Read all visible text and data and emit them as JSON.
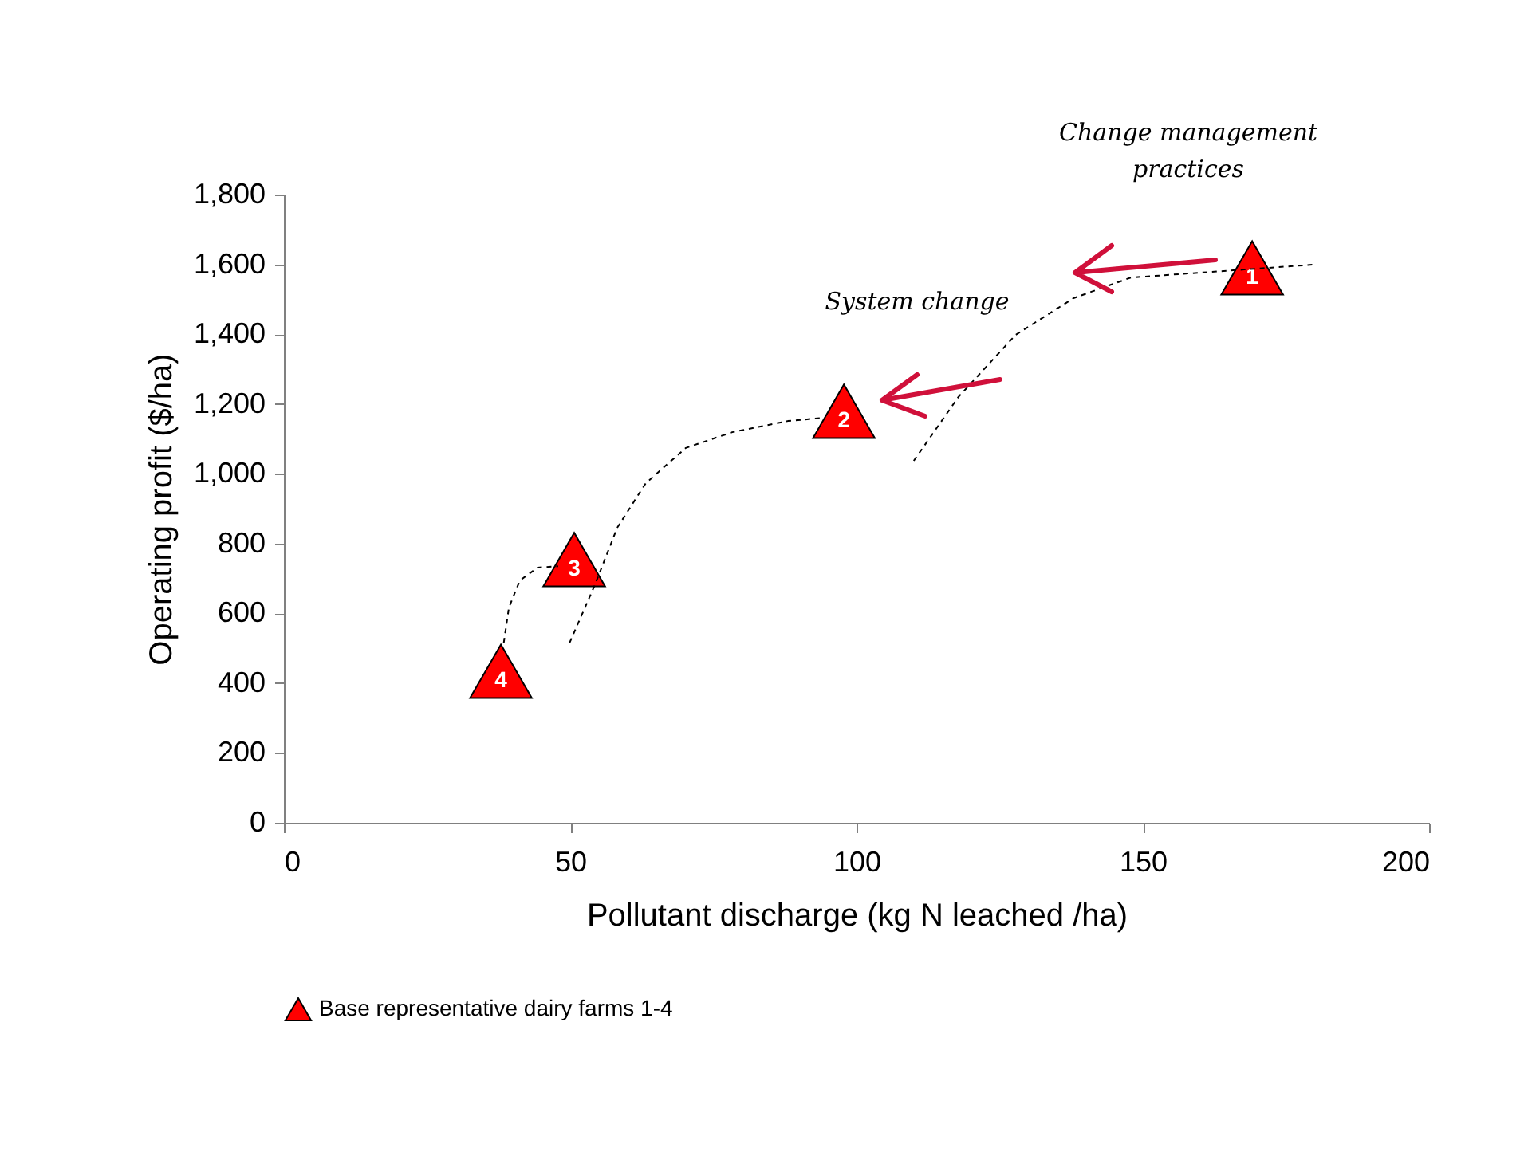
{
  "chart_data": {
    "type": "scatter",
    "xlabel": "Pollutant discharge (kg N leached /ha)",
    "ylabel": "Operating profit  ($/ha)",
    "xlim": [
      0,
      200
    ],
    "xticks": [
      0,
      50,
      100,
      150,
      200
    ],
    "ylim": [
      0,
      1800
    ],
    "yticks": [
      0,
      200,
      400,
      600,
      800,
      {
        "value": 1000,
        "label": "1,000"
      },
      {
        "value": 1200,
        "label": "1,200"
      },
      {
        "value": 1400,
        "label": "1,400"
      },
      {
        "value": 1600,
        "label": "1,600"
      },
      {
        "value": 1800,
        "label": "1,800"
      }
    ],
    "grid": false,
    "legend": "bottom",
    "annotations": [
      "Change management practices",
      "System change",
      {
        "text": "1",
        "x": 169.1,
        "y": 1590
      },
      {
        "text": "2",
        "x": 97.8,
        "y": 1179
      },
      {
        "text": "3",
        "x": 50.7,
        "y": 754
      },
      {
        "text": "4",
        "x": 37.9,
        "y": 434
      }
    ],
    "series": [
      {
        "name": "Base representative dairy farms 1-4",
        "marker": "triangle",
        "color": "#ff0000",
        "x": [
          169.1,
          97.8,
          50.7,
          37.9
        ],
        "values": [
          1590,
          1179,
          754,
          434
        ]
      },
      {
        "type": "line",
        "line_style": "dashed",
        "marker": "none",
        "color": "#000000",
        "x": [
          110.0,
          117.8,
          127.8,
          137.9,
          147.9,
          167.7,
          179.7
        ],
        "values": [
          1037,
          1220,
          1398,
          1503,
          1562,
          1585,
          1599
        ]
      },
      {
        "type": "line",
        "line_style": "dashed",
        "marker": "none",
        "color": "#000000",
        "x": [
          49.9,
          54.3,
          58.2,
          63.2,
          70.2,
          78.3,
          88.0,
          94.1
        ],
        "values": [
          516,
          681,
          845,
          973,
          1074,
          1119,
          1151,
          1160
        ]
      },
      {
        "type": "line",
        "line_style": "dashed",
        "marker": "none",
        "color": "#000000",
        "x": [
          38.4,
          39.3,
          41.2,
          44.3,
          47.9
        ],
        "values": [
          516,
          617,
          694,
          731,
          735
        ]
      }
    ]
  }
}
